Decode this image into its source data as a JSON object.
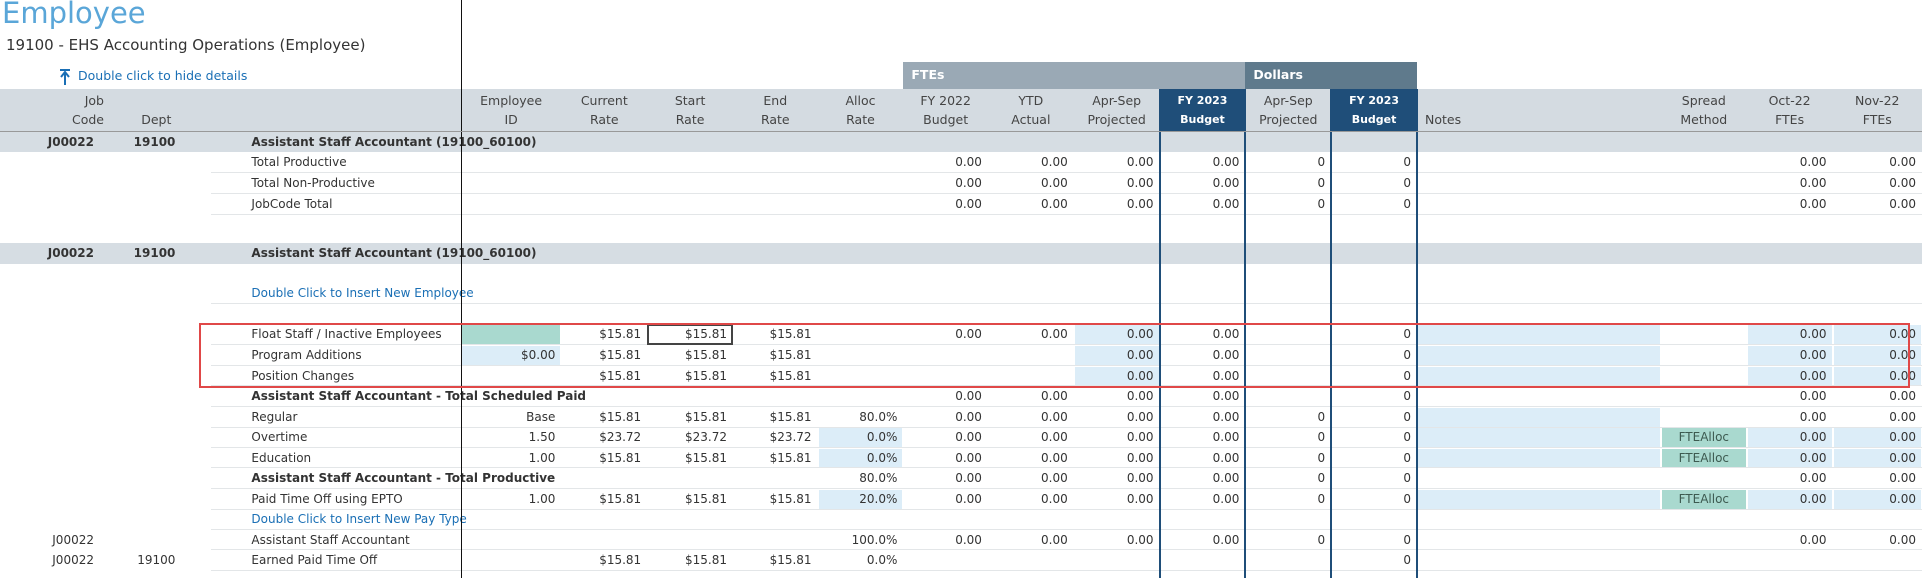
{
  "header": {
    "title": "Employee",
    "subtitle": "19100 - EHS Accounting Operations (Employee)",
    "toggle": "Double click to hide details"
  },
  "groups": [
    {
      "label": "FTEs"
    },
    {
      "label": "Dollars"
    }
  ],
  "columns": [
    [
      "Job",
      "Code"
    ],
    [
      null,
      "Dept"
    ],
    [
      null,
      null
    ],
    [
      "Employee",
      "ID"
    ],
    [
      "Current",
      "Rate"
    ],
    [
      "Start",
      "Rate"
    ],
    [
      "End",
      "Rate"
    ],
    [
      "Alloc",
      "Rate"
    ],
    [
      "FY 2022",
      "Budget"
    ],
    [
      "YTD",
      "Actual"
    ],
    [
      "Apr-Sep",
      "Projected"
    ],
    [
      "FY 2023",
      "Budget"
    ],
    [
      "Apr-Sep",
      "Projected"
    ],
    [
      "FY 2023",
      "Budget"
    ],
    [
      null,
      "Notes"
    ],
    [
      "Spread",
      "Method"
    ],
    [
      "Oct-22",
      "FTEs"
    ],
    [
      "Nov-22",
      "FTEs"
    ]
  ],
  "rows": [
    {
      "cells": [
        "J00022",
        "19100",
        "Assistant Staff Accountant (19100_60100)",
        null,
        null,
        null,
        null,
        null,
        null,
        null,
        null,
        null,
        null,
        null,
        null,
        null,
        null,
        null
      ]
    },
    {
      "cells": [
        null,
        null,
        "Total Productive",
        null,
        null,
        null,
        null,
        null,
        "0.00",
        "0.00",
        "0.00",
        "0.00",
        "0",
        "0",
        null,
        null,
        "0.00",
        "0.00"
      ]
    },
    {
      "cells": [
        null,
        null,
        "Total Non-Productive",
        null,
        null,
        null,
        null,
        null,
        "0.00",
        "0.00",
        "0.00",
        "0.00",
        "0",
        "0",
        null,
        null,
        "0.00",
        "0.00"
      ]
    },
    {
      "cells": [
        null,
        null,
        "JobCode Total",
        null,
        null,
        null,
        null,
        null,
        "0.00",
        "0.00",
        "0.00",
        "0.00",
        "0",
        "0",
        null,
        null,
        "0.00",
        "0.00"
      ]
    },
    {
      "cells": [
        "J00022",
        "19100",
        "Assistant Staff Accountant (19100_60100)",
        null,
        null,
        null,
        null,
        null,
        null,
        null,
        null,
        null,
        null,
        null,
        null,
        null,
        null,
        null
      ]
    },
    {
      "cells": [
        null,
        null,
        "Double Click to Insert New Employee",
        null,
        null,
        null,
        null,
        null,
        null,
        null,
        null,
        null,
        null,
        null,
        null,
        null,
        null,
        null
      ]
    },
    {
      "cells": [
        null,
        null,
        "Float Staff / Inactive Employees",
        null,
        "$15.81",
        "$15.81",
        "$15.81",
        null,
        "0.00",
        "0.00",
        "0.00",
        "0.00",
        null,
        "0",
        null,
        null,
        "0.00",
        "0.00"
      ]
    },
    {
      "cells": [
        null,
        null,
        "Program Additions",
        "$0.00",
        "$15.81",
        "$15.81",
        "$15.81",
        null,
        null,
        null,
        "0.00",
        "0.00",
        null,
        "0",
        null,
        null,
        "0.00",
        "0.00"
      ]
    },
    {
      "cells": [
        null,
        null,
        "Position Changes",
        null,
        "$15.81",
        "$15.81",
        "$15.81",
        null,
        null,
        null,
        "0.00",
        "0.00",
        null,
        "0",
        null,
        null,
        "0.00",
        "0.00"
      ]
    },
    {
      "cells": [
        null,
        null,
        "Assistant Staff Accountant - Total Scheduled Paid",
        null,
        null,
        null,
        null,
        null,
        "0.00",
        "0.00",
        "0.00",
        "0.00",
        null,
        "0",
        null,
        null,
        "0.00",
        "0.00"
      ]
    },
    {
      "cells": [
        null,
        null,
        "Regular",
        "Base",
        "$15.81",
        "$15.81",
        "$15.81",
        "80.0%",
        "0.00",
        "0.00",
        "0.00",
        "0.00",
        "0",
        "0",
        null,
        null,
        "0.00",
        "0.00"
      ]
    },
    {
      "cells": [
        null,
        null,
        "Overtime",
        "1.50",
        "$23.72",
        "$23.72",
        "$23.72",
        "0.0%",
        "0.00",
        "0.00",
        "0.00",
        "0.00",
        "0",
        "0",
        null,
        "FTEAlloc",
        "0.00",
        "0.00"
      ]
    },
    {
      "cells": [
        null,
        null,
        "Education",
        "1.00",
        "$15.81",
        "$15.81",
        "$15.81",
        "0.0%",
        "0.00",
        "0.00",
        "0.00",
        "0.00",
        "0",
        "0",
        null,
        "FTEAlloc",
        "0.00",
        "0.00"
      ]
    },
    {
      "cells": [
        null,
        null,
        "Assistant Staff Accountant - Total Productive",
        null,
        null,
        null,
        null,
        "80.0%",
        "0.00",
        "0.00",
        "0.00",
        "0.00",
        "0",
        "0",
        null,
        null,
        "0.00",
        "0.00"
      ]
    },
    {
      "cells": [
        null,
        null,
        "Paid Time Off using EPTO",
        "1.00",
        "$15.81",
        "$15.81",
        "$15.81",
        "20.0%",
        "0.00",
        "0.00",
        "0.00",
        "0.00",
        "0",
        "0",
        null,
        "FTEAlloc",
        "0.00",
        "0.00"
      ]
    },
    {
      "cells": [
        null,
        null,
        "Double Click to Insert New Pay Type",
        null,
        null,
        null,
        null,
        null,
        null,
        null,
        null,
        null,
        null,
        null,
        null,
        null,
        null,
        null
      ]
    },
    {
      "cells": [
        "J00022",
        null,
        "Assistant Staff Accountant",
        null,
        null,
        null,
        null,
        "100.0%",
        "0.00",
        "0.00",
        "0.00",
        "0.00",
        "0",
        "0",
        null,
        null,
        "0.00",
        "0.00"
      ]
    },
    {
      "cells": [
        "J00022",
        "19100",
        "Earned Paid Time Off",
        null,
        "$15.81",
        "$15.81",
        "$15.81",
        "0.0%",
        null,
        null,
        null,
        null,
        null,
        "0",
        null,
        null,
        null,
        null
      ]
    }
  ]
}
